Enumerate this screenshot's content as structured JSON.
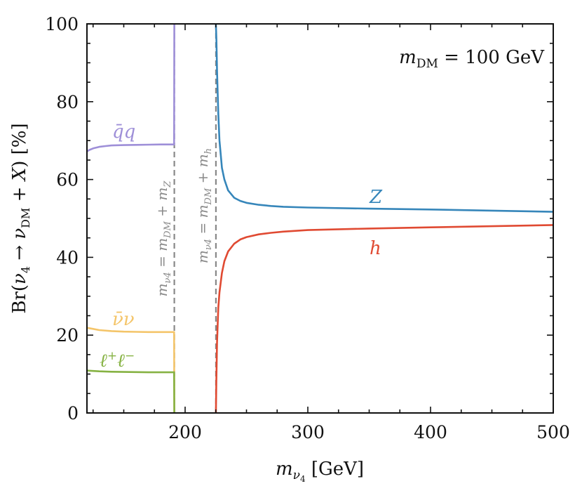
{
  "chart_data": {
    "type": "line",
    "xlabel": "m_ν4 [GeV]",
    "ylabel": "Br(ν4 → νDM + X) [%]",
    "xlim": [
      120,
      500
    ],
    "ylim": [
      0,
      100
    ],
    "xticks": [
      200,
      300,
      400,
      500
    ],
    "yticks": [
      0,
      20,
      40,
      60,
      80,
      100
    ],
    "annotation": "mDM = 100 GeV",
    "thresholds": [
      {
        "name": "mDM + mZ",
        "x": 191.2,
        "label": "mν4 = mDM + mZ"
      },
      {
        "name": "mDM + mh",
        "x": 225.1,
        "label": "mν4 = mDM + mh"
      }
    ],
    "series": [
      {
        "name": "q̄q",
        "label": "q̄q",
        "color": "#9e8fd8",
        "x": [
          120,
          122,
          125,
          130,
          135,
          140,
          150,
          160,
          170,
          180,
          190,
          191
        ],
        "values": [
          67.2,
          67.6,
          68.0,
          68.4,
          68.6,
          68.75,
          68.85,
          68.9,
          68.95,
          69.0,
          69.0,
          69.0
        ],
        "rise_at": 191.2,
        "rise_to": 100
      },
      {
        "name": "ν̄ν",
        "label": "ν̄ν",
        "color": "#f4c56a",
        "x": [
          120,
          125,
          130,
          140,
          150,
          160,
          170,
          180,
          191
        ],
        "values": [
          21.9,
          21.6,
          21.3,
          21.05,
          20.9,
          20.85,
          20.8,
          20.8,
          20.8
        ],
        "drop_at": 191.2
      },
      {
        "name": "ℓ+ℓ−",
        "label": "ℓ+ℓ−",
        "color": "#86b243",
        "x": [
          120,
          125,
          130,
          140,
          150,
          160,
          170,
          180,
          191
        ],
        "values": [
          10.9,
          10.8,
          10.7,
          10.6,
          10.55,
          10.5,
          10.45,
          10.45,
          10.45
        ],
        "drop_at": 191.2
      },
      {
        "name": "Z",
        "label": "Z",
        "color": "#3686ba",
        "x": [
          225.1,
          225.5,
          226,
          227,
          228,
          230,
          232,
          235,
          240,
          245,
          250,
          260,
          270,
          280,
          300,
          350,
          400,
          450,
          500
        ],
        "values": [
          100,
          96,
          88,
          77,
          70,
          63,
          60,
          57.2,
          55.3,
          54.5,
          54.0,
          53.5,
          53.2,
          53.0,
          52.8,
          52.5,
          52.3,
          52.0,
          51.7
        ]
      },
      {
        "name": "h",
        "label": "h",
        "color": "#e04a32",
        "x": [
          225.1,
          225.4,
          226,
          227,
          228,
          230,
          232,
          235,
          240,
          245,
          250,
          260,
          270,
          280,
          300,
          350,
          400,
          450,
          500
        ],
        "values": [
          0,
          8,
          18,
          27,
          31,
          36,
          39,
          41.5,
          43.5,
          44.6,
          45.2,
          45.9,
          46.3,
          46.6,
          47.0,
          47.4,
          47.7,
          48.0,
          48.3
        ]
      }
    ]
  }
}
